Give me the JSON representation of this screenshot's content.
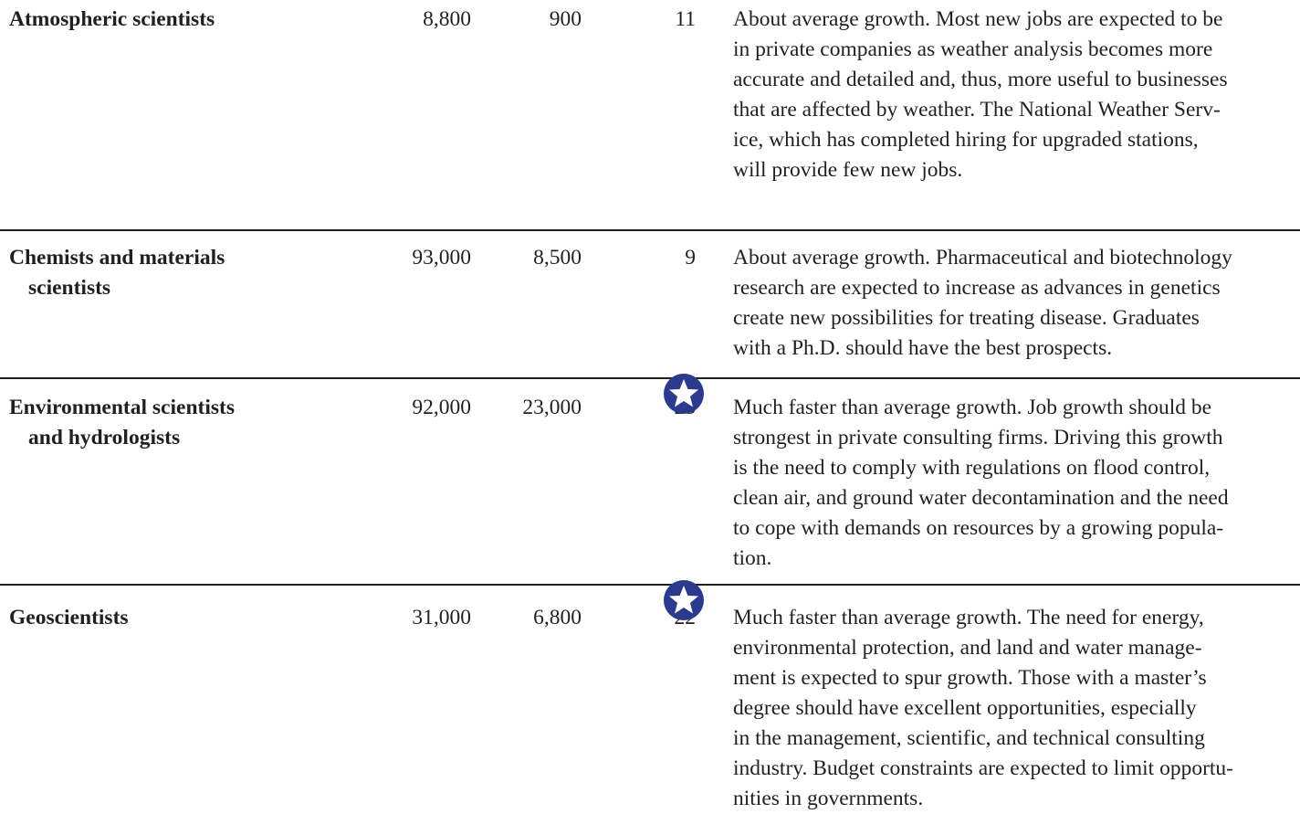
{
  "table": {
    "rows": [
      {
        "occupation": [
          "Atmospheric scientists"
        ],
        "employment": "8,800",
        "change": "900",
        "percent": "11",
        "outlook": [
          "About average growth. Most new jobs are expected to be",
          "in private companies as weather analysis becomes more",
          "accurate and detailed and, thus, more useful to businesses",
          "that are affected by weather. The National Weather Serv-",
          "ice, which has completed hiring for upgraded stations,",
          "will provide few new jobs."
        ]
      },
      {
        "occupation": [
          "Chemists and materials",
          "scientists"
        ],
        "employment": "93,000",
        "change": "8,500",
        "percent": "9",
        "outlook": [
          "About average growth. Pharmaceutical and biotechnology",
          "research are expected to increase as advances in genetics",
          "create new possibilities for treating disease. Graduates",
          "with a Ph.D. should have the best prospects."
        ]
      },
      {
        "occupation": [
          "Environmental scientists",
          "and hydrologists"
        ],
        "employment": "92,000",
        "change": "23,000",
        "percent": "25",
        "outlook": [
          "Much faster than average growth. Job growth should be",
          "strongest in private consulting firms. Driving this growth",
          "is the need to comply with regulations on flood control,",
          "clean air, and ground water decontamination and the need",
          "to cope with demands on resources by a growing popula-",
          "tion."
        ]
      },
      {
        "occupation": [
          "Geoscientists"
        ],
        "employment": "31,000",
        "change": "6,800",
        "percent": "22",
        "outlook": [
          "Much faster than average growth. The need for energy,",
          "environmental protection, and land and water manage-",
          "ment is expected to spur growth. Those with a master’s",
          "degree should have excellent opportunities, especially",
          "in the management, scientific, and technical consulting",
          "industry. Budget constraints are expected to limit opportu-",
          "nities in governments."
        ]
      }
    ]
  }
}
